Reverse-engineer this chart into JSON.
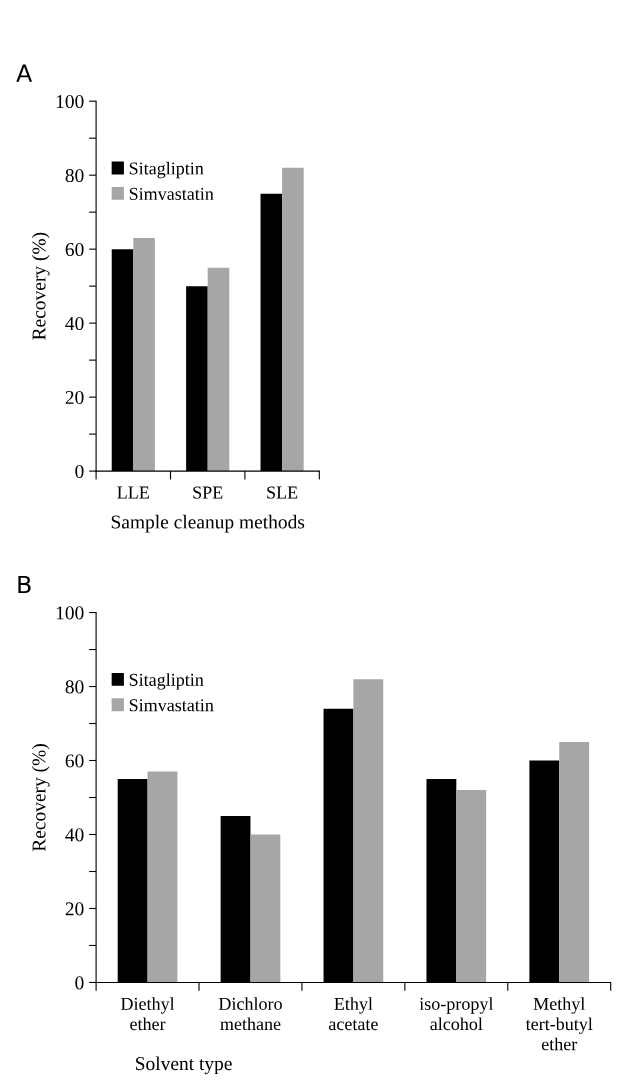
{
  "chart_data": [
    {
      "type": "bar",
      "title": "A",
      "xlabel": "Sample cleanup methods",
      "ylabel": "Recovery (%)",
      "categories": [
        "LLE",
        "SPE",
        "SLE"
      ],
      "series": [
        {
          "name": "Sitagliptin",
          "color": "#000000",
          "values": [
            60,
            50,
            75
          ]
        },
        {
          "name": "Simvastatin",
          "color": "#a6a6a6",
          "values": [
            63,
            55,
            82
          ]
        }
      ],
      "ylim": [
        0,
        100
      ],
      "yticks": [
        0,
        {
          "value": 10,
          "label": null
        },
        20,
        {
          "value": 30,
          "label": null
        },
        40,
        {
          "value": 50,
          "label": null
        },
        60,
        {
          "value": 70,
          "label": null
        },
        80,
        {
          "value": 90,
          "label": null
        },
        100
      ],
      "grid": false,
      "legend": "top left"
    },
    {
      "type": "bar",
      "title": "B",
      "xlabel": "Solvent type",
      "ylabel": "Recovery (%)",
      "categories": [
        "Diethyl\nether",
        "Dichloro\nmethane",
        "Ethyl\nacetate",
        "iso-propyl\nalcohol",
        "Methyl\ntert-butyl\nether"
      ],
      "series": [
        {
          "name": "Sitagliptin",
          "color": "#000000",
          "values": [
            55,
            45,
            74,
            55,
            60
          ]
        },
        {
          "name": "Simvastatin",
          "color": "#a6a6a6",
          "values": [
            57,
            40,
            82,
            52,
            65
          ]
        }
      ],
      "ylim": [
        0,
        100
      ],
      "yticks": [
        0,
        {
          "value": 10,
          "label": null
        },
        20,
        {
          "value": 30,
          "label": null
        },
        40,
        {
          "value": 50,
          "label": null
        },
        60,
        {
          "value": 70,
          "label": null
        },
        80,
        {
          "value": 90,
          "label": null
        },
        100
      ],
      "grid": false,
      "legend": "top left"
    }
  ]
}
